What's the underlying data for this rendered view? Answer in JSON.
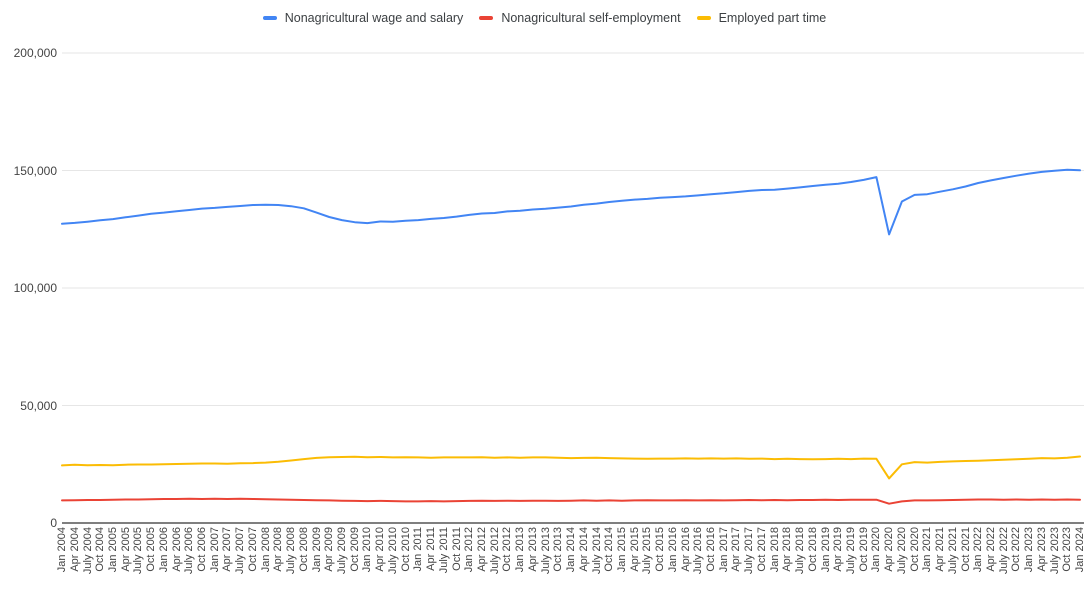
{
  "chart_data": {
    "type": "line",
    "legend_position": "top",
    "grid": true,
    "background_color": "#ffffff",
    "gridline_color": "#e6e6e6",
    "axis_color": "#333333",
    "label_color": "#444444",
    "legend_text_color": "#3c4043",
    "ylim": [
      0,
      200000
    ],
    "y_ticks": [
      {
        "label": "0",
        "value": 0
      },
      {
        "label": "50,000",
        "value": 50000
      },
      {
        "label": "100,000",
        "value": 100000
      },
      {
        "label": "150,000",
        "value": 150000
      },
      {
        "label": "200,000",
        "value": 200000
      }
    ],
    "categories": [
      "Jan 2004",
      "Apr 2004",
      "July 2004",
      "Oct 2004",
      "Jan 2005",
      "Apr 2005",
      "July 2005",
      "Oct 2005",
      "Jan 2006",
      "Apr 2006",
      "July 2006",
      "Oct 2006",
      "Jan 2007",
      "Apr 2007",
      "July 2007",
      "Oct 2007",
      "Jan 2008",
      "Apr 2008",
      "July 2008",
      "Oct 2008",
      "Jan 2009",
      "Apr 2009",
      "July 2009",
      "Oct 2009",
      "Jan 2010",
      "Apr 2010",
      "July 2010",
      "Oct 2010",
      "Jan 2011",
      "Apr 2011",
      "July 2011",
      "Oct 2011",
      "Jan 2012",
      "Apr 2012",
      "July 2012",
      "Oct 2012",
      "Jan 2013",
      "Apr 2013",
      "July 2013",
      "Oct 2013",
      "Jan 2014",
      "Apr 2014",
      "July 2014",
      "Oct 2014",
      "Jan 2015",
      "Apr 2015",
      "July 2015",
      "Oct 2015",
      "Jan 2016",
      "Apr 2016",
      "July 2016",
      "Oct 2016",
      "Jan 2017",
      "Apr 2017",
      "July 2017",
      "Oct 2017",
      "Jan 2018",
      "Apr 2018",
      "July 2018",
      "Oct 2018",
      "Jan 2019",
      "Apr 2019",
      "July 2019",
      "Oct 2019",
      "Jan 2020",
      "Apr 2020",
      "July 2020",
      "Oct 2020",
      "Jan 2021",
      "Apr 2021",
      "July 2021",
      "Oct 2021",
      "Jan 2022",
      "Apr 2022",
      "July 2022",
      "Oct 2022",
      "Jan 2023",
      "Apr 2023",
      "July 2023",
      "Oct 2023",
      "Jan 2024"
    ],
    "series": [
      {
        "name": "Nonagricultural wage and salary",
        "color": "#4285f4",
        "values": [
          127300,
          127700,
          128200,
          128800,
          129300,
          130100,
          130800,
          131600,
          132100,
          132700,
          133200,
          133800,
          134100,
          134500,
          134900,
          135300,
          135400,
          135300,
          134800,
          133900,
          132100,
          130200,
          128900,
          128000,
          127600,
          128300,
          128200,
          128600,
          128900,
          129400,
          129800,
          130400,
          131100,
          131700,
          131900,
          132600,
          132900,
          133400,
          133700,
          134200,
          134700,
          135400,
          135900,
          136600,
          137100,
          137600,
          137900,
          138400,
          138700,
          139000,
          139400,
          139900,
          140300,
          140800,
          141300,
          141700,
          141800,
          142300,
          142800,
          143400,
          143900,
          144400,
          145100,
          146000,
          147200,
          122800,
          136800,
          139600,
          139900,
          141000,
          142000,
          143200,
          144700,
          145800,
          146800,
          147800,
          148700,
          149400,
          149900,
          150300,
          150100
        ]
      },
      {
        "name": "Nonagricultural self-employment",
        "color": "#ea4335",
        "values": [
          9600,
          9700,
          9800,
          9800,
          9900,
          10000,
          10000,
          10100,
          10200,
          10200,
          10300,
          10200,
          10300,
          10200,
          10300,
          10200,
          10100,
          10000,
          9900,
          9800,
          9700,
          9600,
          9500,
          9400,
          9300,
          9400,
          9300,
          9200,
          9200,
          9300,
          9200,
          9300,
          9400,
          9500,
          9400,
          9500,
          9400,
          9500,
          9500,
          9400,
          9500,
          9600,
          9500,
          9600,
          9500,
          9600,
          9700,
          9600,
          9600,
          9700,
          9600,
          9700,
          9600,
          9700,
          9800,
          9700,
          9800,
          9700,
          9800,
          9800,
          9900,
          9800,
          9900,
          9900,
          9900,
          8200,
          9200,
          9600,
          9600,
          9700,
          9800,
          9900,
          10000,
          10000,
          9900,
          10000,
          9900,
          10000,
          9900,
          10000,
          9900
        ]
      },
      {
        "name": "Employed part time",
        "color": "#fbbc04",
        "values": [
          24500,
          24800,
          24600,
          24700,
          24600,
          24800,
          24900,
          24900,
          25000,
          25100,
          25200,
          25300,
          25300,
          25200,
          25400,
          25500,
          25700,
          26100,
          26600,
          27200,
          27700,
          28000,
          28100,
          28200,
          28000,
          28100,
          27900,
          28000,
          27900,
          27800,
          27900,
          27900,
          27900,
          28000,
          27800,
          27900,
          27800,
          27900,
          27900,
          27800,
          27600,
          27700,
          27800,
          27600,
          27500,
          27400,
          27300,
          27400,
          27400,
          27500,
          27400,
          27500,
          27400,
          27500,
          27300,
          27400,
          27200,
          27300,
          27200,
          27100,
          27200,
          27300,
          27200,
          27400,
          27300,
          19000,
          25000,
          25900,
          25700,
          26000,
          26200,
          26400,
          26500,
          26700,
          26900,
          27100,
          27300,
          27600,
          27500,
          27800,
          28300
        ]
      }
    ]
  }
}
